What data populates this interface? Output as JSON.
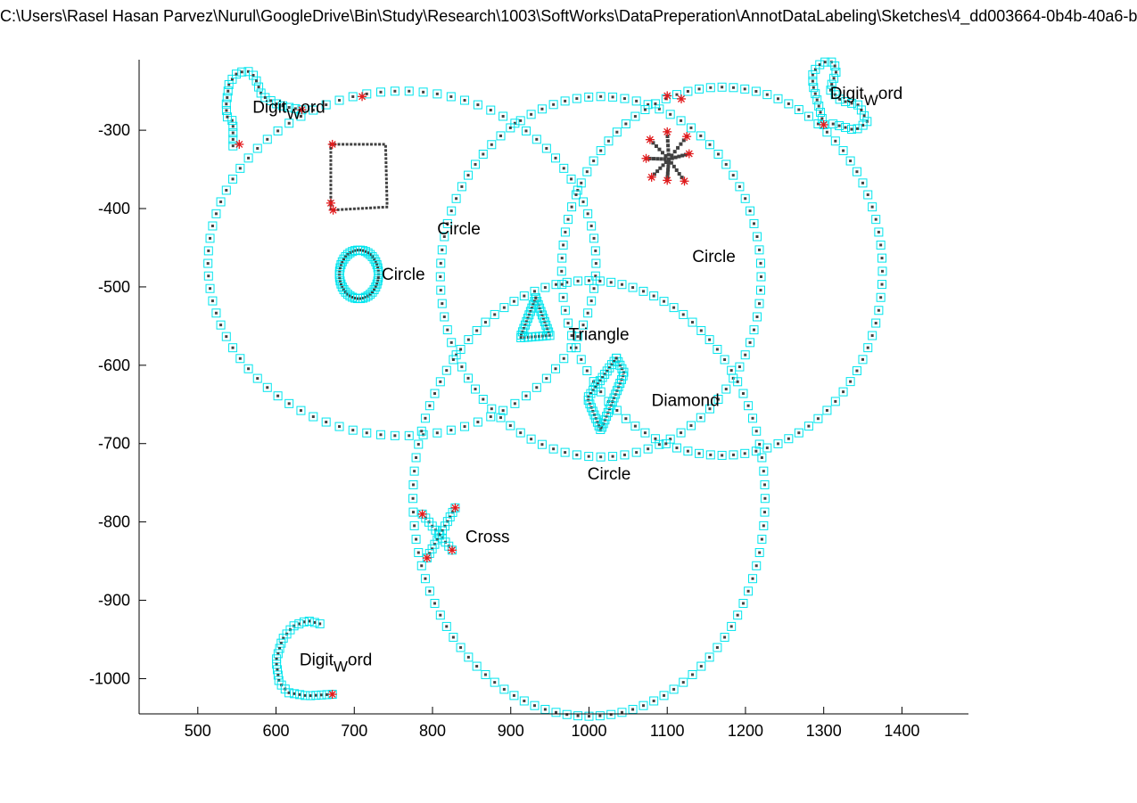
{
  "title": "C:\\Users\\Rasel Hasan Parvez\\Nurul\\GoogleDrive\\Bin\\Study\\Research\\1003\\SoftWorks\\DataPreperation\\AnnotDataLabeling\\Sketches\\4_dd003664-0b4b-40a6-b",
  "colors": {
    "marker_edge": "#00e5ee",
    "point": "#404040",
    "endpoint": "#e41a1c",
    "axis": "#000000"
  },
  "chart_data": {
    "type": "scatter",
    "title": "C:\\Users\\Rasel Hasan Parvez\\Nurul\\GoogleDrive\\Bin\\Study\\Research\\1003\\SoftWorks\\DataPreperation\\AnnotDataLabeling\\Sketches\\4_dd003664-0b4b-40a6-b",
    "xlabel": "",
    "ylabel": "",
    "xlim": [
      425,
      1485
    ],
    "ylim": [
      -1045,
      -210
    ],
    "xticks": [
      500,
      600,
      700,
      800,
      900,
      1000,
      1100,
      1200,
      1300,
      1400
    ],
    "xtick_labels": [
      "500",
      "600",
      "700",
      "800",
      "900",
      "1000",
      "1100",
      "1200",
      "1300",
      "1400"
    ],
    "yticks": [
      -300,
      -400,
      -500,
      -600,
      -700,
      -800,
      -900,
      -1000
    ],
    "ytick_labels": [
      "-300",
      "-400",
      "-500",
      "-600",
      "-700",
      "-800",
      "-900",
      "-1000"
    ],
    "grid": false,
    "box": "left-bottom",
    "markers": [
      "cyan-square",
      "dark-point",
      "red-asterisk-endpoint"
    ],
    "annotations": [
      {
        "text": "Circle",
        "x": 806,
        "y": -425
      },
      {
        "text": "Circle",
        "x": 735,
        "y": -483
      },
      {
        "text": "Circle",
        "x": 1132,
        "y": -460
      },
      {
        "text": "Circle",
        "x": 998,
        "y": -738
      },
      {
        "text": "Triangle",
        "x": 974,
        "y": -560
      },
      {
        "text": "Diamond",
        "x": 1080,
        "y": -644
      },
      {
        "text": "Cross",
        "x": 842,
        "y": -818
      },
      {
        "text": "Digit",
        "subscript": "W",
        "suffix": "ord",
        "x": 570,
        "y": -270
      },
      {
        "text": "Digit",
        "subscript": "W",
        "suffix": "ord",
        "x": 1308,
        "y": -252
      },
      {
        "text": "Digit",
        "subscript": "W",
        "suffix": "ord",
        "x": 630,
        "y": -975
      }
    ],
    "strokes": [
      {
        "shape": "Circle",
        "kind": "ellipse",
        "center": [
          761,
          -470
        ],
        "radii": [
          248,
          220
        ],
        "n": 86,
        "dense": false
      },
      {
        "shape": "Circle",
        "kind": "ellipse",
        "center": [
          1015,
          -487
        ],
        "radii": [
          205,
          230
        ],
        "n": 84,
        "dense": false
      },
      {
        "shape": "Circle",
        "kind": "ellipse",
        "center": [
          1000,
          -770
        ],
        "radii": [
          225,
          278
        ],
        "n": 100,
        "dense": false
      },
      {
        "shape": "Circle",
        "kind": "ellipse",
        "center": [
          1170,
          -480
        ],
        "radii": [
          205,
          235
        ],
        "n": 88,
        "dense": false
      },
      {
        "shape": "Circle",
        "kind": "ellipse",
        "center": [
          706,
          -484
        ],
        "radii": [
          25,
          31
        ],
        "n": 46,
        "dense": true
      },
      {
        "shape": "Rectangle",
        "kind": "polyline",
        "points": [
          [
            670,
            -318
          ],
          [
            740,
            -318
          ],
          [
            742,
            -398
          ],
          [
            670,
            -402
          ],
          [
            670,
            -318
          ]
        ],
        "n": 60,
        "cyan": false,
        "dense": true
      },
      {
        "shape": "Triangle",
        "kind": "polyline",
        "points": [
          [
            932,
            -514
          ],
          [
            950,
            -562
          ],
          [
            912,
            -565
          ],
          [
            932,
            -514
          ]
        ],
        "n": 32,
        "dense": true
      },
      {
        "shape": "Diamond",
        "kind": "polyline",
        "points": [
          [
            1035,
            -591
          ],
          [
            1045,
            -610
          ],
          [
            1015,
            -683
          ],
          [
            998,
            -642
          ],
          [
            1035,
            -591
          ]
        ],
        "n": 42,
        "dense": true
      },
      {
        "shape": "Cross",
        "kind": "polyline",
        "points": [
          [
            787,
            -790
          ],
          [
            825,
            -836
          ]
        ],
        "n": 10,
        "dense": true
      },
      {
        "shape": "Cross",
        "kind": "polyline",
        "points": [
          [
            829,
            -782
          ],
          [
            793,
            -846
          ]
        ],
        "n": 12,
        "dense": true
      },
      {
        "shape": "Digit",
        "kind": "polyline",
        "points": [
          [
            545,
            -320
          ],
          [
            545,
            -288
          ],
          [
            538,
            -285
          ],
          [
            536,
            -270
          ],
          [
            540,
            -240
          ],
          [
            551,
            -226
          ],
          [
            566,
            -225
          ],
          [
            573,
            -232
          ],
          [
            582,
            -256
          ],
          [
            600,
            -266
          ],
          [
            612,
            -270
          ],
          [
            633,
            -274
          ]
        ],
        "n": 26,
        "dense": true
      },
      {
        "shape": "Digit",
        "kind": "polyline",
        "points": [
          [
            1300,
            -293
          ],
          [
            1294,
            -270
          ],
          [
            1286,
            -242
          ],
          [
            1286,
            -226
          ],
          [
            1298,
            -213
          ],
          [
            1313,
            -213
          ],
          [
            1316,
            -225
          ],
          [
            1308,
            -248
          ],
          [
            1322,
            -262
          ],
          [
            1345,
            -268
          ],
          [
            1356,
            -290
          ],
          [
            1340,
            -300
          ],
          [
            1312,
            -292
          ]
        ],
        "n": 32,
        "dense": true
      },
      {
        "shape": "Digit",
        "kind": "polyline",
        "points": [
          [
            656,
            -930
          ],
          [
            640,
            -926
          ],
          [
            622,
            -933
          ],
          [
            608,
            -950
          ],
          [
            600,
            -977
          ],
          [
            604,
            -1005
          ],
          [
            616,
            -1018
          ],
          [
            640,
            -1022
          ],
          [
            672,
            -1020
          ]
        ],
        "n": 28,
        "dense": true
      }
    ],
    "endpoints": [
      {
        "x": 553,
        "y": -318
      },
      {
        "x": 633,
        "y": -274
      },
      {
        "x": 710,
        "y": -257
      },
      {
        "x": 1118,
        "y": -260
      },
      {
        "x": 1100,
        "y": -256
      },
      {
        "x": 1300,
        "y": -293
      },
      {
        "x": 672,
        "y": -318
      },
      {
        "x": 670,
        "y": -393
      },
      {
        "x": 673,
        "y": -402
      },
      {
        "x": 1100,
        "y": -302
      },
      {
        "x": 1125,
        "y": -308
      },
      {
        "x": 1128,
        "y": -330
      },
      {
        "x": 1122,
        "y": -365
      },
      {
        "x": 1100,
        "y": -364
      },
      {
        "x": 1080,
        "y": -360
      },
      {
        "x": 1073,
        "y": -336
      },
      {
        "x": 1078,
        "y": -312
      },
      {
        "x": 787,
        "y": -790
      },
      {
        "x": 825,
        "y": -836
      },
      {
        "x": 829,
        "y": -782
      },
      {
        "x": 793,
        "y": -846
      },
      {
        "x": 672,
        "y": -1020
      }
    ],
    "asterisk_center": [
      1102,
      -337
    ]
  }
}
